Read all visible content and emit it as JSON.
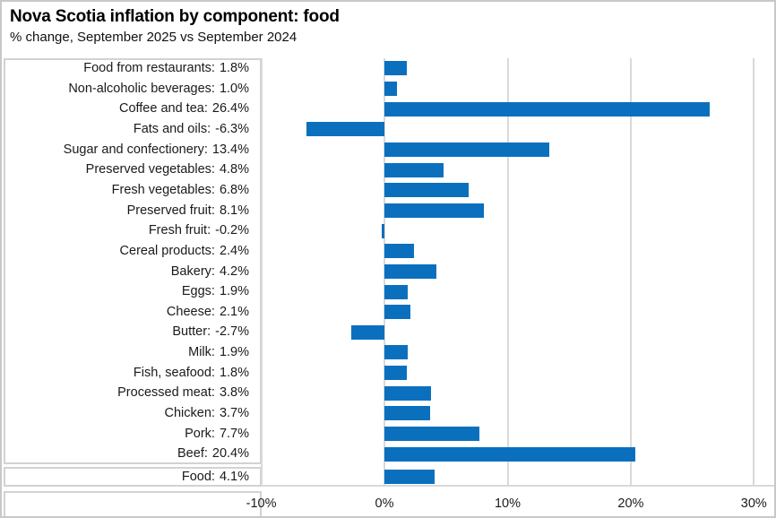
{
  "chart_data": {
    "type": "bar",
    "orientation": "horizontal",
    "title": "Nova Scotia inflation by component: food",
    "subtitle": "% change, September 2025 vs September 2024",
    "xlabel": "",
    "ylabel": "",
    "xlim": [
      -10,
      30
    ],
    "grid": true,
    "bar_color": "#0a70be",
    "x_ticks": [
      {
        "value": -10,
        "label": "-10%"
      },
      {
        "value": 0,
        "label": "0%"
      },
      {
        "value": 10,
        "label": "10%"
      },
      {
        "value": 20,
        "label": "20%"
      },
      {
        "value": 30,
        "label": "30%"
      }
    ],
    "rows": [
      {
        "label": "Food from restaurants",
        "value": 1.8,
        "value_label": "1.8%"
      },
      {
        "label": "Non-alcoholic beverages",
        "value": 1.0,
        "value_label": "1.0%"
      },
      {
        "label": "Coffee and tea",
        "value": 26.4,
        "value_label": "26.4%"
      },
      {
        "label": "Fats and oils",
        "value": -6.3,
        "value_label": "-6.3%"
      },
      {
        "label": "Sugar and confectionery",
        "value": 13.4,
        "value_label": "13.4%"
      },
      {
        "label": "Preserved vegetables",
        "value": 4.8,
        "value_label": "4.8%"
      },
      {
        "label": "Fresh vegetables",
        "value": 6.8,
        "value_label": "6.8%"
      },
      {
        "label": "Preserved fruit",
        "value": 8.1,
        "value_label": "8.1%"
      },
      {
        "label": "Fresh fruit",
        "value": -0.2,
        "value_label": "-0.2%"
      },
      {
        "label": "Cereal products",
        "value": 2.4,
        "value_label": "2.4%"
      },
      {
        "label": "Bakery",
        "value": 4.2,
        "value_label": "4.2%"
      },
      {
        "label": "Eggs",
        "value": 1.9,
        "value_label": "1.9%"
      },
      {
        "label": "Cheese",
        "value": 2.1,
        "value_label": "2.1%"
      },
      {
        "label": "Butter",
        "value": -2.7,
        "value_label": "-2.7%"
      },
      {
        "label": "Milk",
        "value": 1.9,
        "value_label": "1.9%"
      },
      {
        "label": "Fish, seafood",
        "value": 1.8,
        "value_label": "1.8%"
      },
      {
        "label": "Processed meat",
        "value": 3.8,
        "value_label": "3.8%"
      },
      {
        "label": "Chicken",
        "value": 3.7,
        "value_label": "3.7%"
      },
      {
        "label": "Pork",
        "value": 7.7,
        "value_label": "7.7%"
      },
      {
        "label": "Beef",
        "value": 20.4,
        "value_label": "20.4%"
      }
    ],
    "total_row": {
      "label": "Food",
      "value": 4.1,
      "value_label": "4.1%"
    }
  }
}
